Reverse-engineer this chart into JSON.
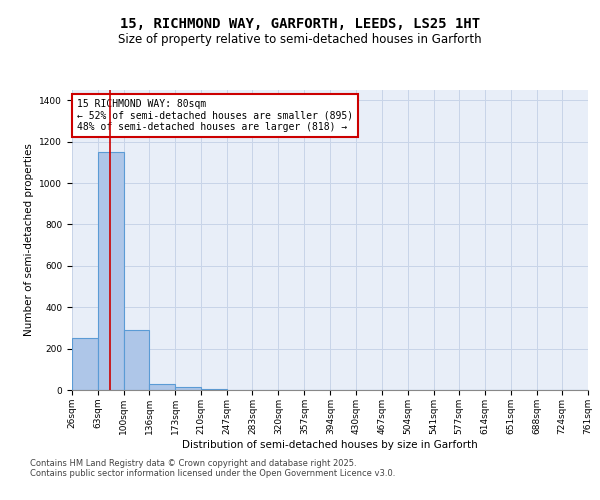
{
  "title": "15, RICHMOND WAY, GARFORTH, LEEDS, LS25 1HT",
  "subtitle": "Size of property relative to semi-detached houses in Garforth",
  "xlabel": "Distribution of semi-detached houses by size in Garforth",
  "ylabel": "Number of semi-detached properties",
  "footnote1": "Contains HM Land Registry data © Crown copyright and database right 2025.",
  "footnote2": "Contains public sector information licensed under the Open Government Licence v3.0.",
  "annotation_title": "15 RICHMOND WAY: 80sqm",
  "annotation_line2": "← 52% of semi-detached houses are smaller (895)",
  "annotation_line3": "48% of semi-detached houses are larger (818) →",
  "property_size": 80,
  "bin_edges": [
    26,
    63,
    100,
    136,
    173,
    210,
    247,
    283,
    320,
    357,
    394,
    430,
    467,
    504,
    541,
    577,
    614,
    651,
    688,
    724,
    761
  ],
  "bin_labels": [
    "26sqm",
    "63sqm",
    "100sqm",
    "136sqm",
    "173sqm",
    "210sqm",
    "247sqm",
    "283sqm",
    "320sqm",
    "357sqm",
    "394sqm",
    "430sqm",
    "467sqm",
    "504sqm",
    "541sqm",
    "577sqm",
    "614sqm",
    "651sqm",
    "688sqm",
    "724sqm",
    "761sqm"
  ],
  "bar_heights": [
    250,
    1150,
    290,
    30,
    15,
    5,
    0,
    0,
    0,
    0,
    0,
    0,
    0,
    0,
    0,
    0,
    0,
    0,
    0,
    0
  ],
  "bar_color": "#aec6e8",
  "bar_edge_color": "#5b9bd5",
  "red_line_color": "#cc0000",
  "grid_color": "#c8d4e8",
  "bg_color": "#e8eef8",
  "annotation_box_color": "#ffffff",
  "annotation_box_edge": "#cc0000",
  "ylim": [
    0,
    1450
  ],
  "yticks": [
    0,
    200,
    400,
    600,
    800,
    1000,
    1200,
    1400
  ],
  "title_fontsize": 10,
  "subtitle_fontsize": 8.5,
  "axis_label_fontsize": 7.5,
  "tick_fontsize": 6.5,
  "annotation_fontsize": 7,
  "footnote_fontsize": 6
}
